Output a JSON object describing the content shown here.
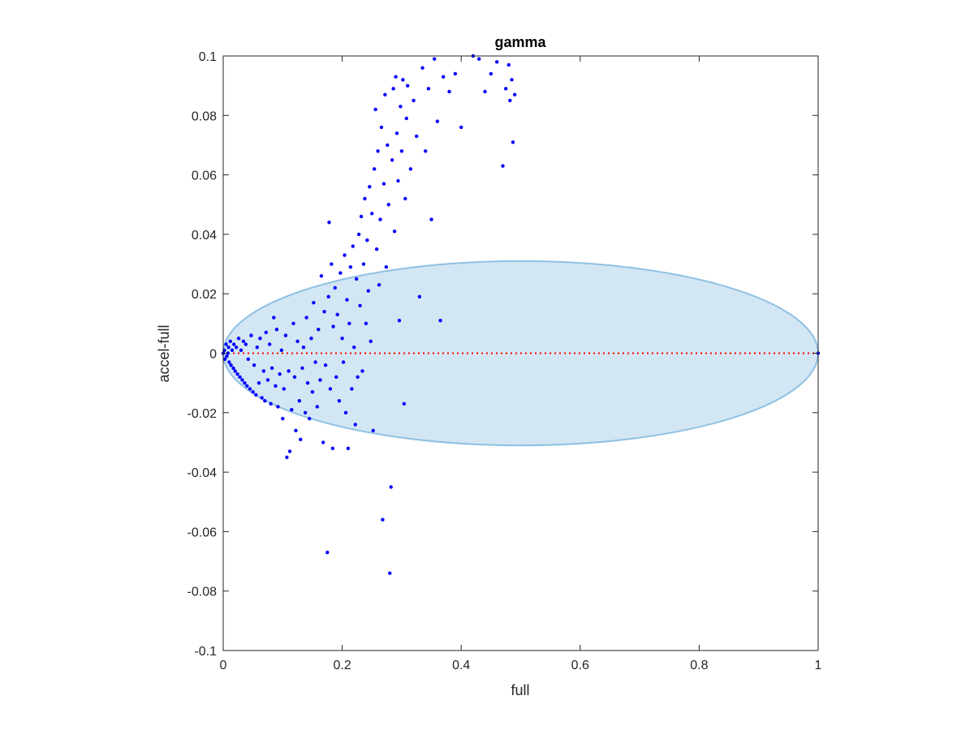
{
  "chart_data": {
    "type": "scatter",
    "title": "gamma",
    "xlabel": "full",
    "ylabel": "accel-full",
    "xlim": [
      0,
      1
    ],
    "ylim": [
      -0.1,
      0.1
    ],
    "xticks": [
      0,
      0.2,
      0.4,
      0.6,
      0.8,
      1
    ],
    "xtick_labels": [
      "0",
      "0.2",
      "0.4",
      "0.6",
      "0.8",
      "1"
    ],
    "yticks": [
      -0.1,
      -0.08,
      -0.06,
      -0.04,
      -0.02,
      0,
      0.02,
      0.04,
      0.06,
      0.08,
      0.1
    ],
    "ytick_labels": [
      "-0.1",
      "-0.08",
      "-0.06",
      "-0.04",
      "-0.02",
      "0",
      "0.02",
      "0.04",
      "0.06",
      "0.08",
      "0.1"
    ],
    "grid": false,
    "ellipse": {
      "center": [
        0.5,
        0
      ],
      "radius_x": 0.5,
      "radius_y": 0.031,
      "fill": "#d3e6f3",
      "stroke": "#8fc1e3"
    },
    "reference_line": {
      "y": 0,
      "x_range": [
        0,
        1
      ],
      "color": "#ff0000",
      "style": "dotted"
    },
    "colors": {
      "points": "#0000ff",
      "axes": "#262626"
    },
    "series": [
      {
        "points": [
          [
            0.0,
            0.0
          ],
          [
            0.002,
            0.001
          ],
          [
            0.003,
            -0.002
          ],
          [
            0.005,
            0.003
          ],
          [
            0.006,
            -0.001
          ],
          [
            0.008,
            0.0
          ],
          [
            0.009,
            0.002
          ],
          [
            0.01,
            -0.003
          ],
          [
            0.012,
            0.004
          ],
          [
            0.013,
            -0.004
          ],
          [
            0.015,
            0.001
          ],
          [
            0.017,
            -0.005
          ],
          [
            0.018,
            0.003
          ],
          [
            0.02,
            -0.006
          ],
          [
            0.022,
            0.002
          ],
          [
            0.024,
            -0.007
          ],
          [
            0.026,
            0.005
          ],
          [
            0.028,
            -0.008
          ],
          [
            0.03,
            0.001
          ],
          [
            0.032,
            -0.009
          ],
          [
            0.034,
            0.004
          ],
          [
            0.036,
            -0.01
          ],
          [
            0.038,
            0.003
          ],
          [
            0.04,
            -0.011
          ],
          [
            0.042,
            -0.002
          ],
          [
            0.045,
            -0.012
          ],
          [
            0.047,
            0.006
          ],
          [
            0.05,
            -0.013
          ],
          [
            0.052,
            -0.004
          ],
          [
            0.055,
            -0.014
          ],
          [
            0.057,
            0.002
          ],
          [
            0.06,
            -0.01
          ],
          [
            0.062,
            0.005
          ],
          [
            0.065,
            -0.015
          ],
          [
            0.068,
            -0.006
          ],
          [
            0.07,
            -0.016
          ],
          [
            0.072,
            0.007
          ],
          [
            0.075,
            -0.009
          ],
          [
            0.078,
            0.003
          ],
          [
            0.08,
            -0.017
          ],
          [
            0.082,
            -0.005
          ],
          [
            0.085,
            0.012
          ],
          [
            0.088,
            -0.011
          ],
          [
            0.09,
            0.008
          ],
          [
            0.092,
            -0.018
          ],
          [
            0.095,
            -0.007
          ],
          [
            0.098,
            0.001
          ],
          [
            0.1,
            -0.022
          ],
          [
            0.102,
            -0.012
          ],
          [
            0.105,
            0.006
          ],
          [
            0.107,
            -0.035
          ],
          [
            0.11,
            -0.006
          ],
          [
            0.112,
            -0.033
          ],
          [
            0.115,
            -0.019
          ],
          [
            0.118,
            0.01
          ],
          [
            0.12,
            -0.008
          ],
          [
            0.122,
            -0.026
          ],
          [
            0.125,
            0.004
          ],
          [
            0.128,
            -0.016
          ],
          [
            0.13,
            -0.029
          ],
          [
            0.133,
            -0.005
          ],
          [
            0.135,
            0.002
          ],
          [
            0.138,
            -0.02
          ],
          [
            0.14,
            0.012
          ],
          [
            0.142,
            -0.01
          ],
          [
            0.145,
            -0.022
          ],
          [
            0.148,
            0.005
          ],
          [
            0.15,
            -0.013
          ],
          [
            0.152,
            0.017
          ],
          [
            0.155,
            -0.003
          ],
          [
            0.158,
            -0.018
          ],
          [
            0.16,
            0.008
          ],
          [
            0.163,
            -0.009
          ],
          [
            0.165,
            0.026
          ],
          [
            0.168,
            -0.03
          ],
          [
            0.17,
            0.014
          ],
          [
            0.172,
            -0.004
          ],
          [
            0.175,
            -0.067
          ],
          [
            0.177,
            0.019
          ],
          [
            0.178,
            0.044
          ],
          [
            0.18,
            -0.012
          ],
          [
            0.182,
            0.03
          ],
          [
            0.184,
            -0.032
          ],
          [
            0.185,
            0.009
          ],
          [
            0.188,
            0.022
          ],
          [
            0.19,
            -0.008
          ],
          [
            0.192,
            0.013
          ],
          [
            0.195,
            -0.016
          ],
          [
            0.197,
            0.027
          ],
          [
            0.2,
            0.005
          ],
          [
            0.202,
            -0.003
          ],
          [
            0.204,
            0.033
          ],
          [
            0.206,
            -0.02
          ],
          [
            0.208,
            0.018
          ],
          [
            0.21,
            -0.032
          ],
          [
            0.212,
            0.01
          ],
          [
            0.214,
            0.029
          ],
          [
            0.216,
            -0.012
          ],
          [
            0.218,
            0.036
          ],
          [
            0.22,
            0.002
          ],
          [
            0.222,
            -0.024
          ],
          [
            0.224,
            0.025
          ],
          [
            0.226,
            -0.008
          ],
          [
            0.228,
            0.04
          ],
          [
            0.23,
            0.016
          ],
          [
            0.232,
            0.046
          ],
          [
            0.234,
            -0.006
          ],
          [
            0.236,
            0.03
          ],
          [
            0.238,
            0.052
          ],
          [
            0.24,
            0.01
          ],
          [
            0.242,
            0.038
          ],
          [
            0.244,
            0.021
          ],
          [
            0.246,
            0.056
          ],
          [
            0.248,
            0.004
          ],
          [
            0.25,
            0.047
          ],
          [
            0.252,
            -0.026
          ],
          [
            0.254,
            0.062
          ],
          [
            0.256,
            0.082
          ],
          [
            0.258,
            0.035
          ],
          [
            0.26,
            0.068
          ],
          [
            0.262,
            0.023
          ],
          [
            0.264,
            0.045
          ],
          [
            0.266,
            0.076
          ],
          [
            0.268,
            -0.056
          ],
          [
            0.27,
            0.057
          ],
          [
            0.272,
            0.087
          ],
          [
            0.274,
            0.029
          ],
          [
            0.276,
            0.07
          ],
          [
            0.278,
            0.05
          ],
          [
            0.28,
            -0.074
          ],
          [
            0.282,
            -0.045
          ],
          [
            0.284,
            0.065
          ],
          [
            0.286,
            0.089
          ],
          [
            0.288,
            0.041
          ],
          [
            0.29,
            0.093
          ],
          [
            0.292,
            0.074
          ],
          [
            0.294,
            0.058
          ],
          [
            0.296,
            0.011
          ],
          [
            0.298,
            0.083
          ],
          [
            0.3,
            0.068
          ],
          [
            0.302,
            0.092
          ],
          [
            0.304,
            -0.017
          ],
          [
            0.306,
            0.052
          ],
          [
            0.308,
            0.079
          ],
          [
            0.31,
            0.09
          ],
          [
            0.315,
            0.062
          ],
          [
            0.32,
            0.085
          ],
          [
            0.325,
            0.073
          ],
          [
            0.33,
            0.019
          ],
          [
            0.335,
            0.096
          ],
          [
            0.34,
            0.068
          ],
          [
            0.345,
            0.089
          ],
          [
            0.35,
            0.045
          ],
          [
            0.355,
            0.099
          ],
          [
            0.36,
            0.078
          ],
          [
            0.365,
            0.011
          ],
          [
            0.37,
            0.093
          ],
          [
            0.38,
            0.088
          ],
          [
            0.39,
            0.094
          ],
          [
            0.4,
            0.076
          ],
          [
            0.42,
            0.1
          ],
          [
            0.43,
            0.099
          ],
          [
            0.44,
            0.088
          ],
          [
            0.45,
            0.094
          ],
          [
            0.46,
            0.098
          ],
          [
            0.47,
            0.063
          ],
          [
            0.475,
            0.089
          ],
          [
            0.48,
            0.097
          ],
          [
            0.482,
            0.085
          ],
          [
            0.485,
            0.092
          ],
          [
            0.487,
            0.071
          ],
          [
            0.49,
            0.087
          ],
          [
            1.0,
            0.0
          ]
        ]
      }
    ]
  }
}
